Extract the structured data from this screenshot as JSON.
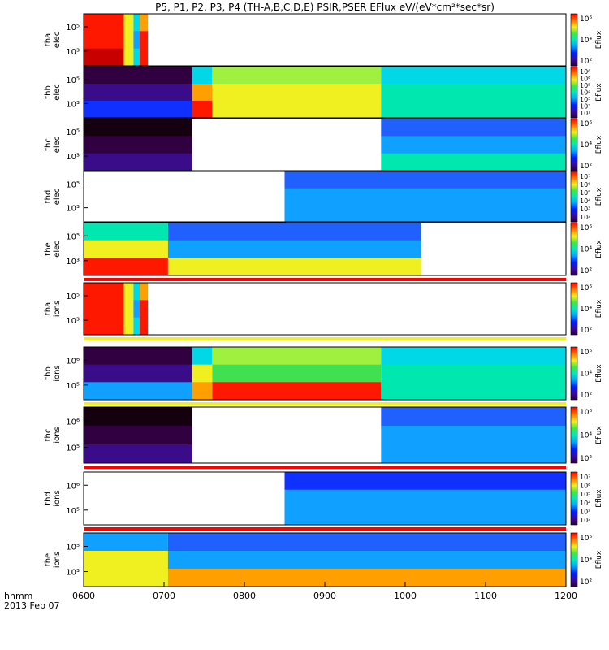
{
  "title": "P5, P1, P2, P3, P4 (TH-A,B,C,D,E) PSIR,PSER EFlux eV/(eV*cm²*sec*sr)",
  "x_axis": {
    "footer_label": "hhmm",
    "date_label": "2013 Feb 07",
    "tick_labels": [
      "0600",
      "0700",
      "0800",
      "0900",
      "1000",
      "1100",
      "1200"
    ]
  },
  "colorbar_label": "Eflux",
  "panels": [
    {
      "id": "tha_elec",
      "ylabel_top": "tha",
      "ylabel_bottom": "elec",
      "yticks": [
        "10⁵",
        "10³"
      ],
      "cbar_ticks": [
        "10⁶",
        "10⁴",
        "10²"
      ]
    },
    {
      "id": "thb_elec",
      "ylabel_top": "thb",
      "ylabel_bottom": "elec",
      "yticks": [
        "10⁵",
        "10³"
      ],
      "cbar_ticks": [
        "10⁸",
        "10⁶",
        "10⁵",
        "10⁴",
        "10³",
        "10²",
        "10¹"
      ]
    },
    {
      "id": "thc_elec",
      "ylabel_top": "thc",
      "ylabel_bottom": "elec",
      "yticks": [
        "10⁵",
        "10³"
      ],
      "cbar_ticks": [
        "10⁶",
        "10⁴",
        "10²"
      ]
    },
    {
      "id": "thd_elec",
      "ylabel_top": "thd",
      "ylabel_bottom": "elec",
      "yticks": [
        "10⁵",
        "10³"
      ],
      "cbar_ticks": [
        "10⁷",
        "10⁶",
        "10⁵",
        "10⁴",
        "10³",
        "10²"
      ]
    },
    {
      "id": "the_elec",
      "ylabel_top": "the",
      "ylabel_bottom": "elec",
      "yticks": [
        "10⁵",
        "10³"
      ],
      "cbar_ticks": [
        "10⁶",
        "10⁴",
        "10²"
      ]
    },
    {
      "id": "tha_ions",
      "ylabel_top": "tha",
      "ylabel_bottom": "ions",
      "yticks": [
        "10⁵",
        "10³"
      ],
      "cbar_ticks": [
        "10⁶",
        "10⁴",
        "10²"
      ]
    },
    {
      "id": "thb_ions",
      "ylabel_top": "thb",
      "ylabel_bottom": "ions",
      "yticks": [
        "10⁶",
        "10⁵"
      ],
      "cbar_ticks": [
        "10⁶",
        "10⁴",
        "10²"
      ]
    },
    {
      "id": "thc_ions",
      "ylabel_top": "thc",
      "ylabel_bottom": "ions",
      "yticks": [
        "10⁶",
        "10⁵"
      ],
      "cbar_ticks": [
        "10⁶",
        "10⁴",
        "10²"
      ]
    },
    {
      "id": "thd_ions",
      "ylabel_top": "thd",
      "ylabel_bottom": "ions",
      "yticks": [
        "10⁶",
        "10⁵"
      ],
      "cbar_ticks": [
        "10⁷",
        "10⁶",
        "10⁵",
        "10⁴",
        "10³",
        "10²"
      ]
    },
    {
      "id": "the_ions",
      "ylabel_top": "the",
      "ylabel_bottom": "ions",
      "yticks": [
        "10⁵",
        "10³"
      ],
      "cbar_ticks": [
        "10⁶",
        "10⁴",
        "10²"
      ]
    }
  ],
  "chart_data": {
    "type": "heatmap",
    "title": "P5, P1, P2, P3, P4 (TH-A,B,C,D,E) PSIR,PSER EFlux eV/(eV*cm²*sec*sr)",
    "x_axis_label": "hhmm",
    "x_range": [
      "0600",
      "1200"
    ],
    "colormap": "rainbow (black/purple low → red high)",
    "series": [
      {
        "name": "tha elec",
        "data_coverage": [
          [
            "0600",
            "0650"
          ]
        ]
      },
      {
        "name": "thb elec",
        "data_coverage": [
          [
            "0600",
            "1200"
          ]
        ]
      },
      {
        "name": "thc elec",
        "data_coverage": [
          [
            "0600",
            "0735"
          ],
          [
            "0970",
            "1200"
          ]
        ]
      },
      {
        "name": "thd elec",
        "data_coverage": [
          [
            "0850",
            "1200"
          ]
        ]
      },
      {
        "name": "the elec",
        "data_coverage": [
          [
            "0600",
            "1020"
          ]
        ]
      },
      {
        "name": "tha ions",
        "data_coverage": [
          [
            "0600",
            "0650"
          ]
        ]
      },
      {
        "name": "thb ions",
        "data_coverage": [
          [
            "0600",
            "1200"
          ]
        ]
      },
      {
        "name": "thc ions",
        "data_coverage": [
          [
            "0600",
            "0735"
          ],
          [
            "0970",
            "1200"
          ]
        ]
      },
      {
        "name": "thd ions",
        "data_coverage": [
          [
            "0850",
            "1200"
          ]
        ]
      },
      {
        "name": "the ions",
        "data_coverage": [
          [
            "0600",
            "1200"
          ]
        ]
      }
    ]
  }
}
